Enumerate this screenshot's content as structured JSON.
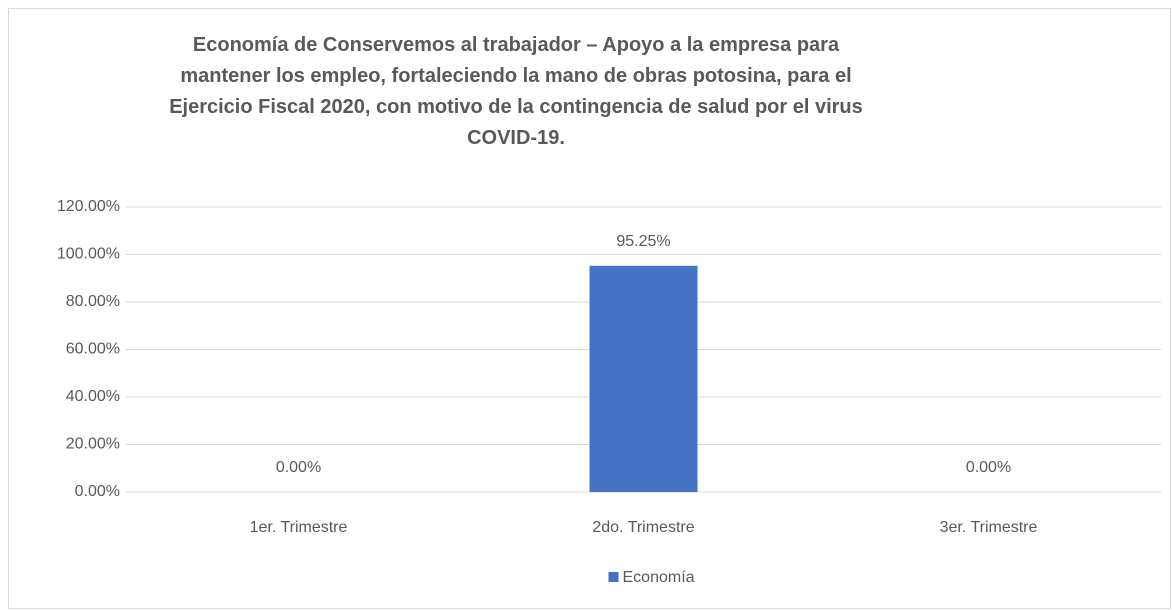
{
  "chart_data": {
    "type": "bar",
    "title": "Economía de Conservemos al trabajador – Apoyo a la empresa para mantener los empleo, fortaleciendo la mano de obras potosina, para el Ejercicio Fiscal 2020, con motivo de la contingencia de salud por el virus COVID-19.",
    "categories": [
      "1er. Trimestre",
      "2do. Trimestre",
      "3er. Trimestre"
    ],
    "series": [
      {
        "name": "Economía",
        "color": "#4472c4",
        "values": [
          0,
          95.25,
          0
        ],
        "value_labels": [
          "0.00%",
          "95.25%",
          "0.00%"
        ]
      }
    ],
    "ylim": [
      0,
      120
    ],
    "yticks": [
      {
        "value": 0,
        "label": "0.00%"
      },
      {
        "value": 20,
        "label": "20.00%"
      },
      {
        "value": 40,
        "label": "40.00%"
      },
      {
        "value": 60,
        "label": "60.00%"
      },
      {
        "value": 80,
        "label": "80.00%"
      },
      {
        "value": 100,
        "label": "100.00%"
      },
      {
        "value": 120,
        "label": "120.00%"
      }
    ],
    "grid": true,
    "legend": "bottom"
  }
}
